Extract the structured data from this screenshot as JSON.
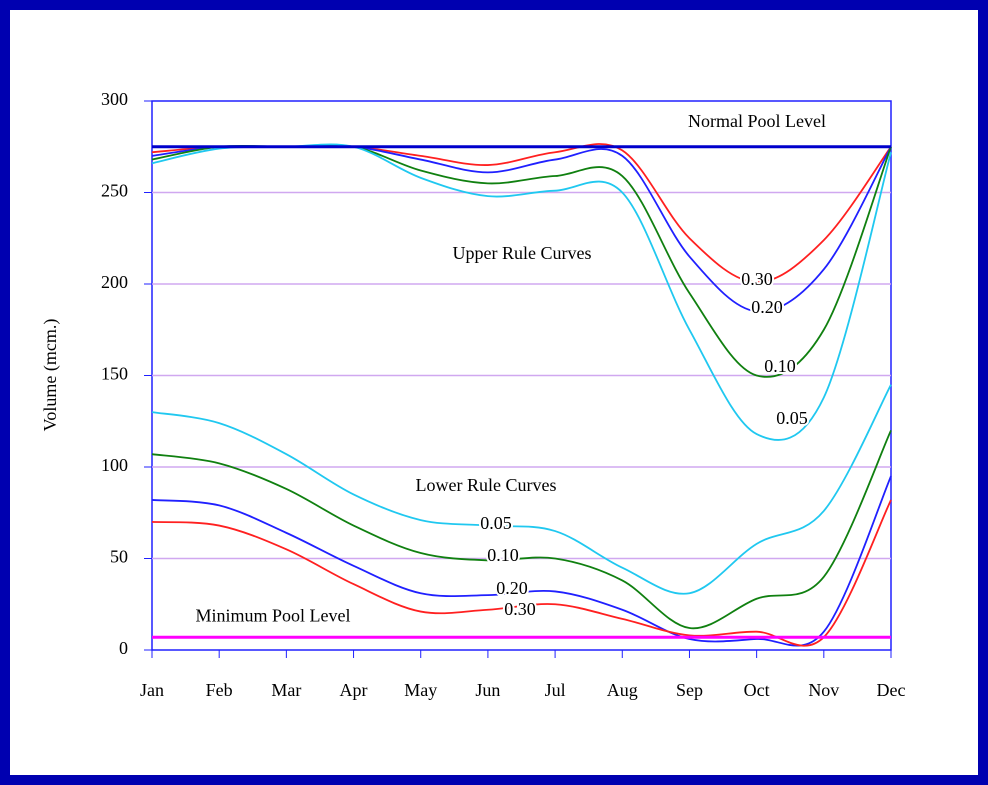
{
  "chart_data": {
    "type": "line",
    "y_label": "Volume (mcm.)",
    "categories": [
      "Jan",
      "Feb",
      "Mar",
      "Apr",
      "May",
      "Jun",
      "Jul",
      "Aug",
      "Sep",
      "Oct",
      "Nov",
      "Dec"
    ],
    "ylim": [
      0,
      300
    ],
    "yticks": [
      0,
      50,
      100,
      150,
      200,
      250,
      300
    ],
    "grid": true,
    "annotations": [
      "Upper Rule Curves",
      "Lower Rule Curves"
    ],
    "hlines": [
      {
        "label": "Normal Pool Level",
        "value": 275,
        "color": "#0000cc"
      },
      {
        "label": "Minimum Pool Level",
        "value": 7,
        "color": "#ff00ff"
      }
    ],
    "series": [
      {
        "name": "0.30",
        "color": "#ff2020",
        "values": [
          272,
          275,
          275,
          275,
          270,
          265,
          272,
          273,
          225,
          201,
          224,
          275
        ]
      },
      {
        "name": "0.20",
        "color": "#2020ff",
        "values": [
          270,
          275,
          275,
          275,
          268,
          261,
          268,
          270,
          215,
          185,
          208,
          275
        ]
      },
      {
        "name": "0.10",
        "color": "#108010",
        "values": [
          268,
          275,
          275,
          275,
          262,
          255,
          259,
          259,
          195,
          150,
          175,
          275
        ]
      },
      {
        "name": "0.05",
        "color": "#20c8f0",
        "values": [
          266,
          274,
          275,
          275,
          258,
          248,
          251,
          250,
          175,
          118,
          138,
          272
        ]
      },
      {
        "name": "0.05",
        "color": "#20c8f0",
        "values": [
          130,
          124,
          107,
          85,
          71,
          68,
          65,
          45,
          31,
          58,
          76,
          145
        ]
      },
      {
        "name": "0.10",
        "color": "#108010",
        "values": [
          107,
          102,
          88,
          68,
          53,
          49,
          50,
          38,
          12,
          28,
          40,
          120
        ]
      },
      {
        "name": "0.20",
        "color": "#2020ff",
        "values": [
          82,
          79,
          64,
          46,
          31,
          30,
          32,
          22,
          6,
          6,
          10,
          95
        ]
      },
      {
        "name": "0.30",
        "color": "#ff2020",
        "values": [
          70,
          68,
          55,
          36,
          21,
          22,
          25,
          17,
          8,
          10,
          7,
          82
        ]
      }
    ]
  }
}
